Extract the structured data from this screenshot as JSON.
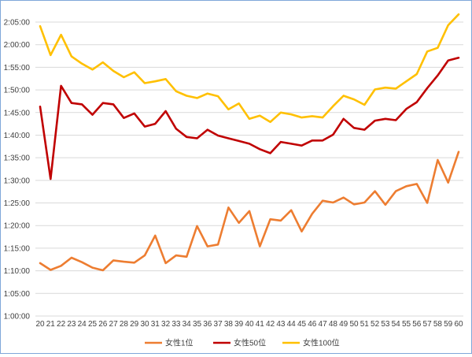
{
  "chart_data": {
    "type": "line",
    "title": "",
    "xlabel": "",
    "ylabel": "",
    "x": [
      20,
      21,
      22,
      23,
      24,
      25,
      26,
      27,
      28,
      29,
      30,
      31,
      32,
      33,
      34,
      35,
      36,
      37,
      38,
      39,
      40,
      41,
      42,
      43,
      44,
      45,
      46,
      47,
      48,
      49,
      50,
      51,
      52,
      53,
      54,
      55,
      56,
      57,
      58,
      59,
      60
    ],
    "y_tick_labels": [
      "1:00:00",
      "1:05:00",
      "1:10:00",
      "1:15:00",
      "1:20:00",
      "1:25:00",
      "1:30:00",
      "1:35:00",
      "1:40:00",
      "1:45:00",
      "1:50:00",
      "1:55:00",
      "2:00:00",
      "2:05:00"
    ],
    "y_unit": "minutes",
    "ylim": [
      60,
      125
    ],
    "ytick_step": 5,
    "grid": true,
    "legend_position": "bottom",
    "series": [
      {
        "name": "女性1位",
        "color": "#ed7d31",
        "values": [
          71.7,
          70.2,
          71.1,
          72.9,
          71.9,
          70.7,
          70.1,
          72.3,
          72.0,
          71.8,
          73.4,
          77.8,
          71.7,
          73.4,
          73.1,
          79.9,
          75.4,
          75.8,
          84.0,
          80.6,
          83.2,
          75.4,
          81.4,
          81.1,
          83.4,
          78.7,
          82.6,
          85.5,
          85.1,
          86.2,
          84.7,
          85.1,
          87.6,
          84.6,
          87.6,
          88.7,
          89.2,
          85.0,
          94.5,
          89.5,
          96.3
        ]
      },
      {
        "name": "女性50位",
        "color": "#c00000",
        "values": [
          106.3,
          90.3,
          110.9,
          107.1,
          106.8,
          104.5,
          107.1,
          106.8,
          103.8,
          104.8,
          101.9,
          102.5,
          105.3,
          101.4,
          99.6,
          99.3,
          101.2,
          99.9,
          99.3,
          98.7,
          98.1,
          96.9,
          96.0,
          98.5,
          98.1,
          97.7,
          98.8,
          98.8,
          100.1,
          103.6,
          101.6,
          101.2,
          103.2,
          103.6,
          103.3,
          105.8,
          107.3,
          110.4,
          113.2,
          116.5,
          117.1
        ]
      },
      {
        "name": "女性100位",
        "color": "#ffc000",
        "values": [
          124.1,
          117.7,
          122.2,
          117.4,
          115.8,
          114.5,
          116.1,
          114.2,
          112.8,
          113.9,
          111.5,
          111.9,
          112.4,
          109.7,
          108.7,
          108.2,
          109.2,
          108.6,
          105.7,
          107.0,
          103.6,
          104.3,
          102.9,
          105.0,
          104.6,
          103.9,
          104.2,
          103.9,
          106.4,
          108.7,
          107.9,
          106.7,
          110.1,
          110.5,
          110.3,
          111.9,
          113.5,
          118.5,
          119.3,
          124.3,
          126.7
        ]
      }
    ]
  }
}
